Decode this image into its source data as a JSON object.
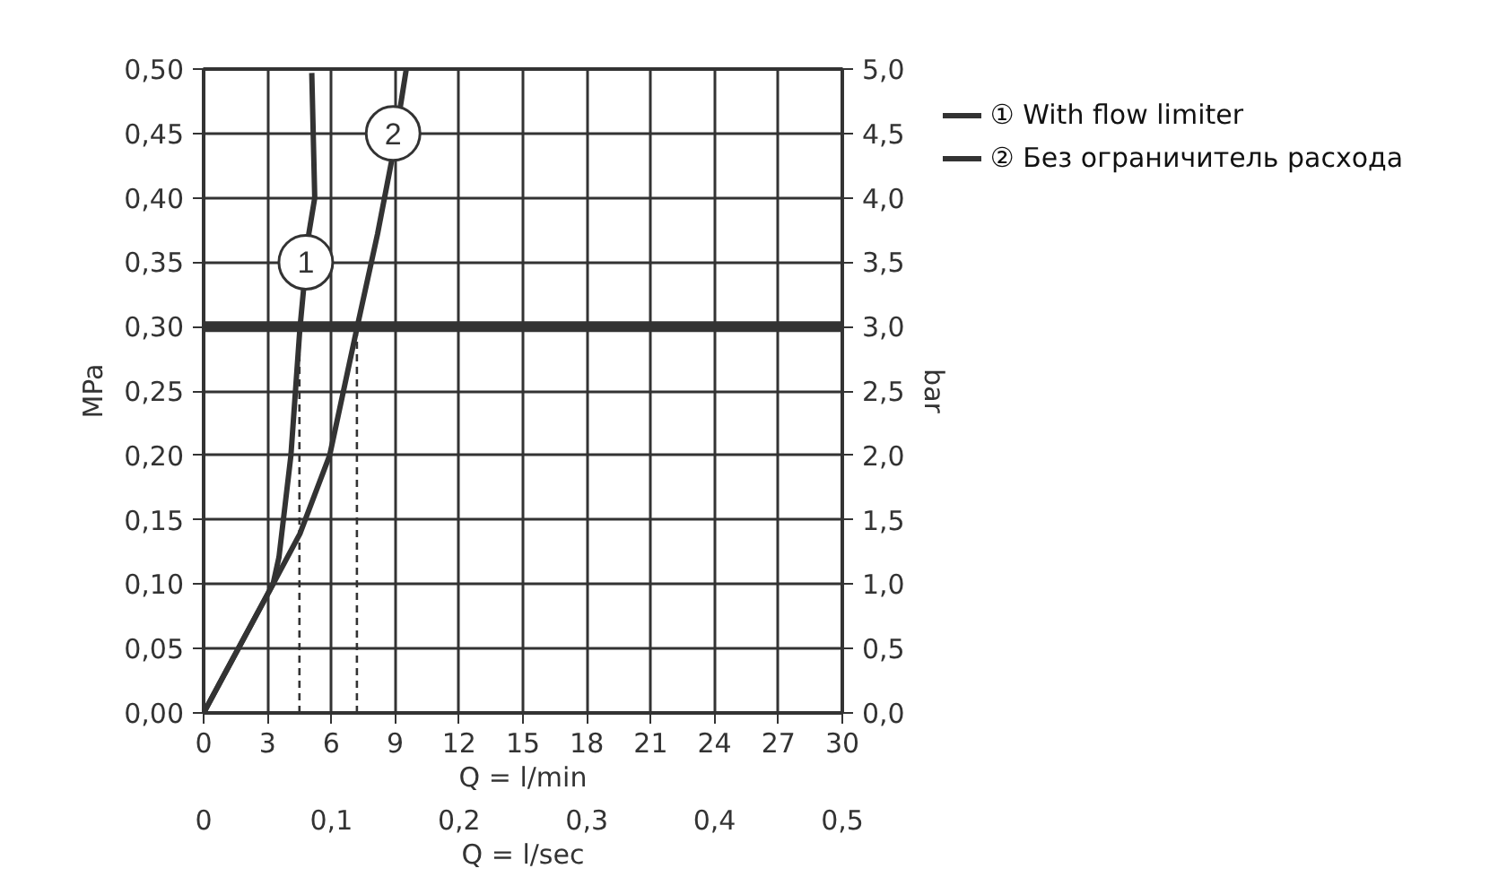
{
  "chart_data": {
    "type": "line",
    "xlabel": "Q = l/min",
    "x2label": "Q = l/sec",
    "ylabel": "MPa",
    "y2label": "bar",
    "xlim": [
      0,
      30
    ],
    "xticks": [
      0,
      3,
      6,
      9,
      12,
      15,
      18,
      21,
      24,
      27,
      30
    ],
    "x2lim": [
      0,
      0.5
    ],
    "x2ticks": [
      {
        "value": 0,
        "label": "0"
      },
      {
        "value": 0.1,
        "label": "0,1"
      },
      {
        "value": 0.2,
        "label": "0,2"
      },
      {
        "value": 0.3,
        "label": "0,3"
      },
      {
        "value": 0.4,
        "label": "0,4"
      },
      {
        "value": 0.5,
        "label": "0,5"
      }
    ],
    "ylim": [
      0,
      0.5
    ],
    "yticks": [
      {
        "value": 0,
        "label": "0,00"
      },
      {
        "value": 0.05,
        "label": "0,05"
      },
      {
        "value": 0.1,
        "label": "0,10"
      },
      {
        "value": 0.15,
        "label": "0,15"
      },
      {
        "value": 0.2,
        "label": "0,20"
      },
      {
        "value": 0.25,
        "label": "0,25"
      },
      {
        "value": 0.3,
        "label": "0,30"
      },
      {
        "value": 0.35,
        "label": "0,35"
      },
      {
        "value": 0.4,
        "label": "0,40"
      },
      {
        "value": 0.45,
        "label": "0,45"
      },
      {
        "value": 0.5,
        "label": "0,50"
      }
    ],
    "y2lim": [
      0,
      5
    ],
    "y2ticks": [
      {
        "value": 0,
        "label": "0,0"
      },
      {
        "value": 0.5,
        "label": "0,5"
      },
      {
        "value": 1,
        "label": "1,0"
      },
      {
        "value": 1.5,
        "label": "1,5"
      },
      {
        "value": 2,
        "label": "2,0"
      },
      {
        "value": 2.5,
        "label": "2,5"
      },
      {
        "value": 3,
        "label": "3,0"
      },
      {
        "value": 3.5,
        "label": "3,5"
      },
      {
        "value": 4,
        "label": "4,0"
      },
      {
        "value": 4.5,
        "label": "4,5"
      },
      {
        "value": 5,
        "label": "5,0"
      }
    ],
    "grid": true,
    "legend": "top right",
    "marker": "none",
    "series": [
      {
        "name": "① With flow limiter",
        "color": "#333333",
        "x": [
          0,
          3.26,
          3.54,
          4.1,
          4.52,
          4.94,
          5.22,
          5.08
        ],
        "values": [
          0,
          0.1,
          0.121,
          0.2,
          0.298,
          0.372,
          0.4,
          0.497
        ]
      },
      {
        "name": "② Без ограничитель расхода",
        "color": "#333333",
        "x": [
          0,
          3.26,
          4.52,
          5.92,
          7.19,
          8.17,
          8.87,
          9.52
        ],
        "values": [
          0,
          0.1,
          0.139,
          0.2,
          0.298,
          0.372,
          0.432,
          0.5
        ]
      },
      {
        "color": "#333333",
        "line_style": "dashed",
        "x": [
          4.5,
          4.5
        ],
        "values": [
          0,
          0.3
        ]
      },
      {
        "color": "#333333",
        "line_style": "dashed",
        "x": [
          7.2,
          7.2
        ],
        "values": [
          0,
          0.3
        ]
      }
    ],
    "ref_lines": [
      {
        "axis": "y",
        "value": 0.3,
        "color": "#333333"
      }
    ],
    "annotations": [
      {
        "text": "1",
        "x": 4.8,
        "y": 0.35
      },
      {
        "text": "2",
        "x": 8.9,
        "y": 0.45
      }
    ]
  }
}
